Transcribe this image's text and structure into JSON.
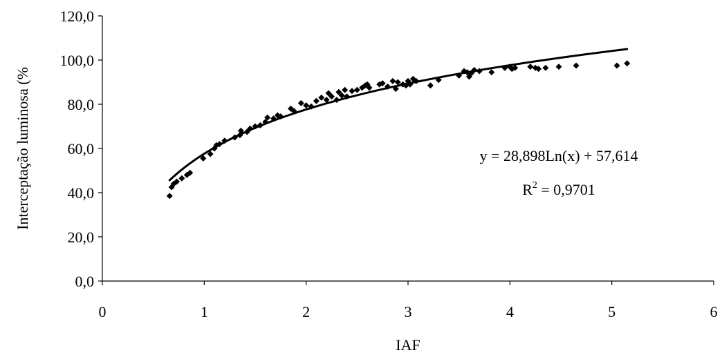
{
  "chart_data": {
    "type": "scatter",
    "title": "",
    "xlabel": "IAF",
    "ylabel": "Interceptação luminosa (%",
    "xlim": [
      0,
      6
    ],
    "ylim": [
      0,
      120
    ],
    "x_ticks": [
      "0",
      "1",
      "2",
      "3",
      "4",
      "5",
      "6"
    ],
    "y_ticks": [
      "0,0",
      "20,0",
      "40,0",
      "60,0",
      "80,0",
      "100,0",
      "120,0"
    ],
    "grid": false,
    "legend": "none",
    "marker": "diamond",
    "color": "#000000",
    "series": [
      {
        "points": [
          [
            0.66,
            38.5
          ],
          [
            0.68,
            42.5
          ],
          [
            0.7,
            44.0
          ],
          [
            0.73,
            45.0
          ],
          [
            0.78,
            46.5
          ],
          [
            0.83,
            48.0
          ],
          [
            0.86,
            49.0
          ],
          [
            0.99,
            55.5
          ],
          [
            1.06,
            57.5
          ],
          [
            1.1,
            60.0
          ],
          [
            1.12,
            61.5
          ],
          [
            1.15,
            62.0
          ],
          [
            1.2,
            63.5
          ],
          [
            1.3,
            65.0
          ],
          [
            1.35,
            66.0
          ],
          [
            1.36,
            68.0
          ],
          [
            1.42,
            67.5
          ],
          [
            1.45,
            69.0
          ],
          [
            1.5,
            70.0
          ],
          [
            1.55,
            70.5
          ],
          [
            1.6,
            72.0
          ],
          [
            1.62,
            74.0
          ],
          [
            1.68,
            73.5
          ],
          [
            1.72,
            75.0
          ],
          [
            1.75,
            74.5
          ],
          [
            1.85,
            78.0
          ],
          [
            1.88,
            77.0
          ],
          [
            1.95,
            80.5
          ],
          [
            2.0,
            79.5
          ],
          [
            2.05,
            79.0
          ],
          [
            2.1,
            81.5
          ],
          [
            2.15,
            83.0
          ],
          [
            2.2,
            82.0
          ],
          [
            2.22,
            85.0
          ],
          [
            2.25,
            83.5
          ],
          [
            2.3,
            82.0
          ],
          [
            2.32,
            85.5
          ],
          [
            2.35,
            84.0
          ],
          [
            2.38,
            86.5
          ],
          [
            2.4,
            83.5
          ],
          [
            2.45,
            86.0
          ],
          [
            2.5,
            86.5
          ],
          [
            2.55,
            87.5
          ],
          [
            2.58,
            88.5
          ],
          [
            2.6,
            89.0
          ],
          [
            2.62,
            87.5
          ],
          [
            2.72,
            89.0
          ],
          [
            2.75,
            89.5
          ],
          [
            2.8,
            88.0
          ],
          [
            2.85,
            90.5
          ],
          [
            2.88,
            87.0
          ],
          [
            2.9,
            90.0
          ],
          [
            2.95,
            89.0
          ],
          [
            2.98,
            88.5
          ],
          [
            3.0,
            90.5
          ],
          [
            3.02,
            89.0
          ],
          [
            3.05,
            91.5
          ],
          [
            3.08,
            90.5
          ],
          [
            3.22,
            88.5
          ],
          [
            3.3,
            91.0
          ],
          [
            3.5,
            93.0
          ],
          [
            3.55,
            95.0
          ],
          [
            3.58,
            94.5
          ],
          [
            3.6,
            92.5
          ],
          [
            3.62,
            94.0
          ],
          [
            3.65,
            95.5
          ],
          [
            3.7,
            95.0
          ],
          [
            3.82,
            94.5
          ],
          [
            3.95,
            96.5
          ],
          [
            4.0,
            97.0
          ],
          [
            4.02,
            96.0
          ],
          [
            4.05,
            96.5
          ],
          [
            4.2,
            97.0
          ],
          [
            4.25,
            96.5
          ],
          [
            4.28,
            96.0
          ],
          [
            4.35,
            96.5
          ],
          [
            4.48,
            97.0
          ],
          [
            4.65,
            97.5
          ],
          [
            5.05,
            97.5
          ],
          [
            5.15,
            98.5
          ]
        ]
      }
    ],
    "trendline": {
      "equation": "y = 28,898Ln(x) + 57,614",
      "r2_prefix": "R",
      "r2_exponent": "2",
      "r2_value": " = 0,9701",
      "a": 28.898,
      "b": 57.614,
      "x_range": [
        0.66,
        5.15
      ]
    }
  }
}
